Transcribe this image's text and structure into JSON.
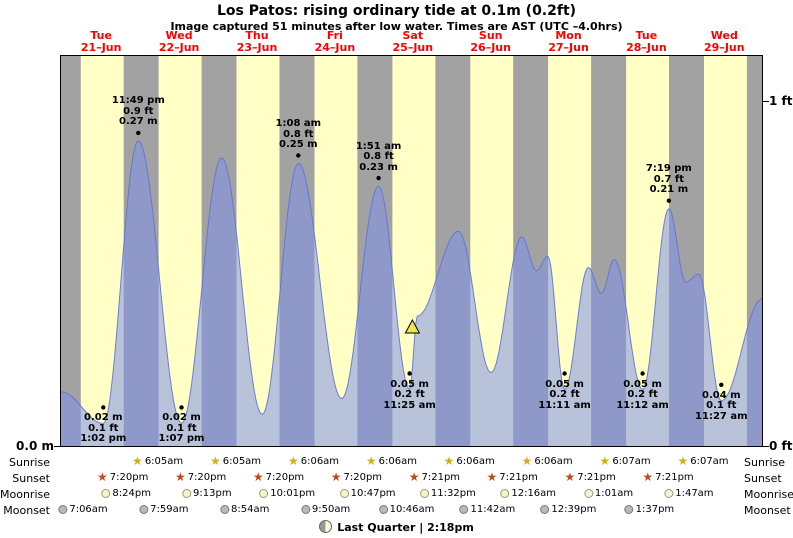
{
  "header": {
    "title": "Los Patos: rising  ordinary tide at 0.1m (0.2ft)",
    "subtitle": "Image captured 51 minutes after low water. Times are AST (UTC –4.0hrs)"
  },
  "axis": {
    "left_bottom": "0.0 m",
    "right_top": "1 ft",
    "right_bottom": "0 ft"
  },
  "chart_data": {
    "type": "area",
    "title": "Los Patos: rising  ordinary tide at 0.1m (0.2ft)",
    "subtitle": "Image captured 51 minutes after low water. Times are AST (UTC –4.0hrs)",
    "x_axis": {
      "start": "Tue 21-Jun 00:00",
      "hours_total": 216,
      "grid": false
    },
    "y_axis": {
      "left_unit": "m",
      "right_unit": "ft",
      "ticks_ft": [
        0,
        1
      ],
      "range_ft": [
        0,
        1.13
      ]
    },
    "day_labels": [
      {
        "day": "Tue",
        "date": "21–Jun"
      },
      {
        "day": "Wed",
        "date": "22–Jun"
      },
      {
        "day": "Thu",
        "date": "23–Jun"
      },
      {
        "day": "Fri",
        "date": "24–Jun"
      },
      {
        "day": "Sat",
        "date": "25–Jun"
      },
      {
        "day": "Sun",
        "date": "26–Jun"
      },
      {
        "day": "Mon",
        "date": "27–Jun"
      },
      {
        "day": "Tue",
        "date": "28–Jun"
      },
      {
        "day": "Wed",
        "date": "29–Jun"
      }
    ],
    "night_bands_hours": [
      [
        0,
        6.09
      ],
      [
        19.33,
        30.08
      ],
      [
        43.33,
        54.08
      ],
      [
        67.33,
        78.1
      ],
      [
        91.33,
        102.1
      ],
      [
        115.35,
        126.1
      ],
      [
        139.35,
        150.1
      ],
      [
        163.35,
        174.12
      ],
      [
        187.35,
        198.12
      ],
      [
        211.35,
        216
      ]
    ],
    "tide_curve_m": [
      [
        0,
        0.048
      ],
      [
        13.03,
        0.02
      ],
      [
        23.82,
        0.27
      ],
      [
        37.12,
        0.02
      ],
      [
        49.5,
        0.255
      ],
      [
        62.0,
        0.028
      ],
      [
        73.13,
        0.25
      ],
      [
        86.5,
        0.042
      ],
      [
        97.85,
        0.23
      ],
      [
        107.42,
        0.05
      ],
      [
        109.8,
        0.115
      ],
      [
        122.5,
        0.19
      ],
      [
        132.5,
        0.065
      ],
      [
        142.0,
        0.185
      ],
      [
        146.5,
        0.155
      ],
      [
        150.0,
        0.168
      ],
      [
        155.18,
        0.05
      ],
      [
        162.5,
        0.158
      ],
      [
        166.5,
        0.135
      ],
      [
        170.5,
        0.165
      ],
      [
        179.2,
        0.05
      ],
      [
        187.32,
        0.21
      ],
      [
        192.5,
        0.145
      ],
      [
        196.5,
        0.152
      ],
      [
        203.45,
        0.04
      ],
      [
        216,
        0.13
      ]
    ],
    "high_tides": [
      {
        "t": 23.82,
        "v": 0.27,
        "lines": [
          "11:49 pm",
          "0.9 ft",
          "0.27 m"
        ]
      },
      {
        "t": 73.13,
        "v": 0.25,
        "lines": [
          "1:08 am",
          "0.8 ft",
          "0.25 m"
        ]
      },
      {
        "t": 97.85,
        "v": 0.23,
        "lines": [
          "1:51 am",
          "0.8 ft",
          "0.23 m"
        ]
      },
      {
        "t": 187.32,
        "v": 0.21,
        "lines": [
          "7:19 pm",
          "0.7 ft",
          "0.21 m"
        ]
      }
    ],
    "low_tides": [
      {
        "t": 13.03,
        "v": 0.02,
        "lines": [
          "0.02 m",
          "0.1 ft",
          "1:02 pm"
        ]
      },
      {
        "t": 37.12,
        "v": 0.02,
        "lines": [
          "0.02 m",
          "0.1 ft",
          "1:07 pm"
        ]
      },
      {
        "t": 107.42,
        "v": 0.05,
        "lines": [
          "0.05 m",
          "0.2 ft",
          "11:25 am"
        ]
      },
      {
        "t": 155.18,
        "v": 0.05,
        "lines": [
          "0.05 m",
          "0.2 ft",
          "11:11 am"
        ]
      },
      {
        "t": 179.2,
        "v": 0.05,
        "lines": [
          "0.05 m",
          "0.2 ft",
          "11:12 am"
        ]
      },
      {
        "t": 203.45,
        "v": 0.04,
        "lines": [
          "0.04 m",
          "0.1 ft",
          "11:27 am"
        ]
      }
    ],
    "current_marker": {
      "t": 108.27,
      "v": 0.1
    },
    "colors": {
      "day_band": "#ffffc6",
      "night_band": "#a2a2a2",
      "tide_fill": "rgba(125,145,235,0.55)",
      "tide_edge": "rgba(95,115,210,0.9)",
      "marker_fill": "#e8e850",
      "date_label": "#ff0000"
    }
  },
  "almanac": {
    "rows": [
      {
        "name": "sunrise",
        "label": "Sunrise",
        "icon": "sunrise-star-icon",
        "events": [
          {
            "t": 30.08,
            "label": "6:05am"
          },
          {
            "t": 54.08,
            "label": "6:05am"
          },
          {
            "t": 78.1,
            "label": "6:06am"
          },
          {
            "t": 102.1,
            "label": "6:06am"
          },
          {
            "t": 126.1,
            "label": "6:06am"
          },
          {
            "t": 150.1,
            "label": "6:06am"
          },
          {
            "t": 174.12,
            "label": "6:07am"
          },
          {
            "t": 198.12,
            "label": "6:07am"
          }
        ]
      },
      {
        "name": "sunset",
        "label": "Sunset",
        "icon": "sunset-star-icon",
        "events": [
          {
            "t": 19.33,
            "label": "7:20pm"
          },
          {
            "t": 43.33,
            "label": "7:20pm"
          },
          {
            "t": 67.33,
            "label": "7:20pm"
          },
          {
            "t": 91.33,
            "label": "7:20pm"
          },
          {
            "t": 115.35,
            "label": "7:21pm"
          },
          {
            "t": 139.35,
            "label": "7:21pm"
          },
          {
            "t": 163.35,
            "label": "7:21pm"
          },
          {
            "t": 187.35,
            "label": "7:21pm"
          }
        ]
      },
      {
        "name": "moonrise",
        "label": "Moonrise",
        "icon": "moonrise-circle-icon",
        "events": [
          {
            "t": 20.4,
            "label": "8:24pm"
          },
          {
            "t": 45.22,
            "label": "9:13pm"
          },
          {
            "t": 70.02,
            "label": "10:01pm"
          },
          {
            "t": 94.78,
            "label": "10:47pm"
          },
          {
            "t": 119.53,
            "label": "11:32pm"
          },
          {
            "t": 144.27,
            "label": "12:16am"
          },
          {
            "t": 169.02,
            "label": "1:01am"
          },
          {
            "t": 193.78,
            "label": "1:47am"
          }
        ]
      },
      {
        "name": "moonset",
        "label": "Moonset",
        "icon": "moonset-circle-icon",
        "events": [
          {
            "t": 7.1,
            "label": "7:06am"
          },
          {
            "t": 31.98,
            "label": "7:59am"
          },
          {
            "t": 56.9,
            "label": "8:54am"
          },
          {
            "t": 81.83,
            "label": "9:50am"
          },
          {
            "t": 106.77,
            "label": "10:46am"
          },
          {
            "t": 131.7,
            "label": "11:42am"
          },
          {
            "t": 156.65,
            "label": "12:39pm"
          },
          {
            "t": 181.62,
            "label": "1:37pm"
          }
        ]
      }
    ],
    "moon_phase": "Last Quarter | 2:18pm"
  }
}
